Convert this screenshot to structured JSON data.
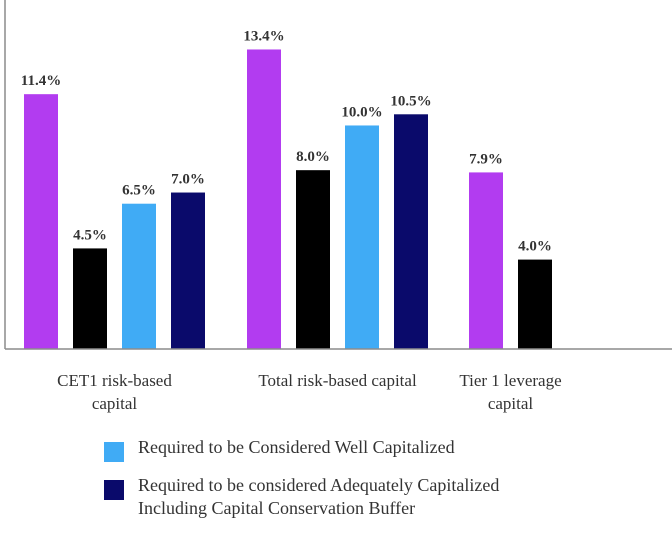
{
  "chart_data": {
    "type": "bar",
    "categories": [
      "CET1 risk-based\ncapital",
      "Total risk-based capital",
      "Tier 1 leverage\ncapital"
    ],
    "series": [
      {
        "color": "#b23cf0",
        "values": [
          11.4,
          13.4,
          7.9
        ],
        "labels": [
          "11.4%",
          "13.4%",
          "7.9%"
        ]
      },
      {
        "color": "#000000",
        "values": [
          4.5,
          8.0,
          4.0
        ],
        "labels": [
          "4.5%",
          "8.0%",
          "4.0%"
        ]
      },
      {
        "name": "Required to be Considered Well Capitalized",
        "color": "#40abf5",
        "values": [
          6.5,
          10.0,
          null
        ],
        "labels": [
          "6.5%",
          "10.0%",
          null
        ]
      },
      {
        "name": "Required to be considered Adequately Capitalized\nIncluding Capital Conservation Buffer",
        "color": "#0a0a6b",
        "values": [
          7.0,
          10.5,
          null
        ],
        "labels": [
          "7.0%",
          "10.5%",
          null
        ]
      }
    ],
    "ylim": [
      0,
      13.6
    ],
    "grid": false,
    "legend_position": "bottom",
    "title": "",
    "xlabel": "",
    "ylabel": ""
  },
  "legend": [
    {
      "label": "Required to be Considered Well Capitalized",
      "color": "#40abf5"
    },
    {
      "label": "Required to be considered Adequately Capitalized\nIncluding Capital Conservation Buffer",
      "color": "#0a0a6b"
    }
  ]
}
